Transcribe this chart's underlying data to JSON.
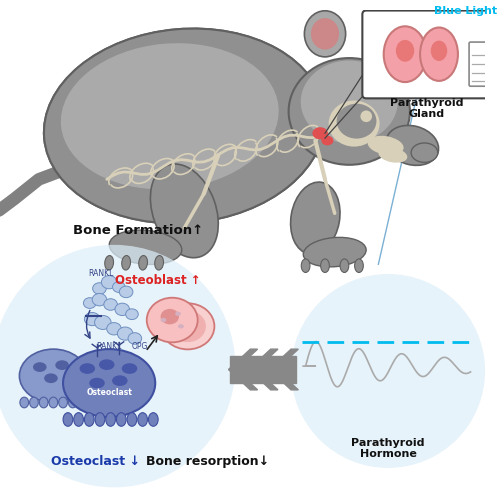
{
  "bg_color": "#ffffff",
  "mouse_body_color": "#909090",
  "mouse_body_light": "#b0b0b0",
  "bone_color": "#d8d0b8",
  "light_blue_circle_color": "#ddeef8",
  "osteoblast_fill": "#f8c0c0",
  "osteoblast_edge": "#d07878",
  "osteoblast_nucleus": "#e09090",
  "osteoclast_fill": "#8899cc",
  "osteoclast_fill2": "#7080bb",
  "osteoclast_nucleus": "#5060a0",
  "osteoclast_nucleus2": "#6070b0",
  "bubble_fill": "#b8cce8",
  "bubble_edge": "#7090c0",
  "arrow_color": "#888888",
  "gland_pink": "#f4a0a8",
  "gland_outline": "#c87878",
  "gland_inner": "#e87878",
  "cyan_color": "#00bbee",
  "dashed_line_color": "#00bbee",
  "waveform_color": "#aaaaaa",
  "red_text_color": "#dd2222",
  "blue_text_color": "#1a3aaa",
  "dark_text_color": "#111111",
  "blue_line_color": "#7ab0d4",
  "text_bone_formation": "Bone Formation↑",
  "text_bone_resorption": "Bone resorption↓",
  "text_osteoblast": "Osteoblast ↑",
  "text_osteoclast_down": "Osteoclast ↓",
  "text_parathyroid_gland": "Parathyroid\nGland",
  "text_parathyroid_hormone": "Parathyroid\nHormone",
  "text_blue_light": "Blue Light",
  "text_rankl_top": "RANKL",
  "text_rankl_bot": "RANKL",
  "text_opg": "OPG",
  "text_osteoclast_label": "Osteoclast"
}
